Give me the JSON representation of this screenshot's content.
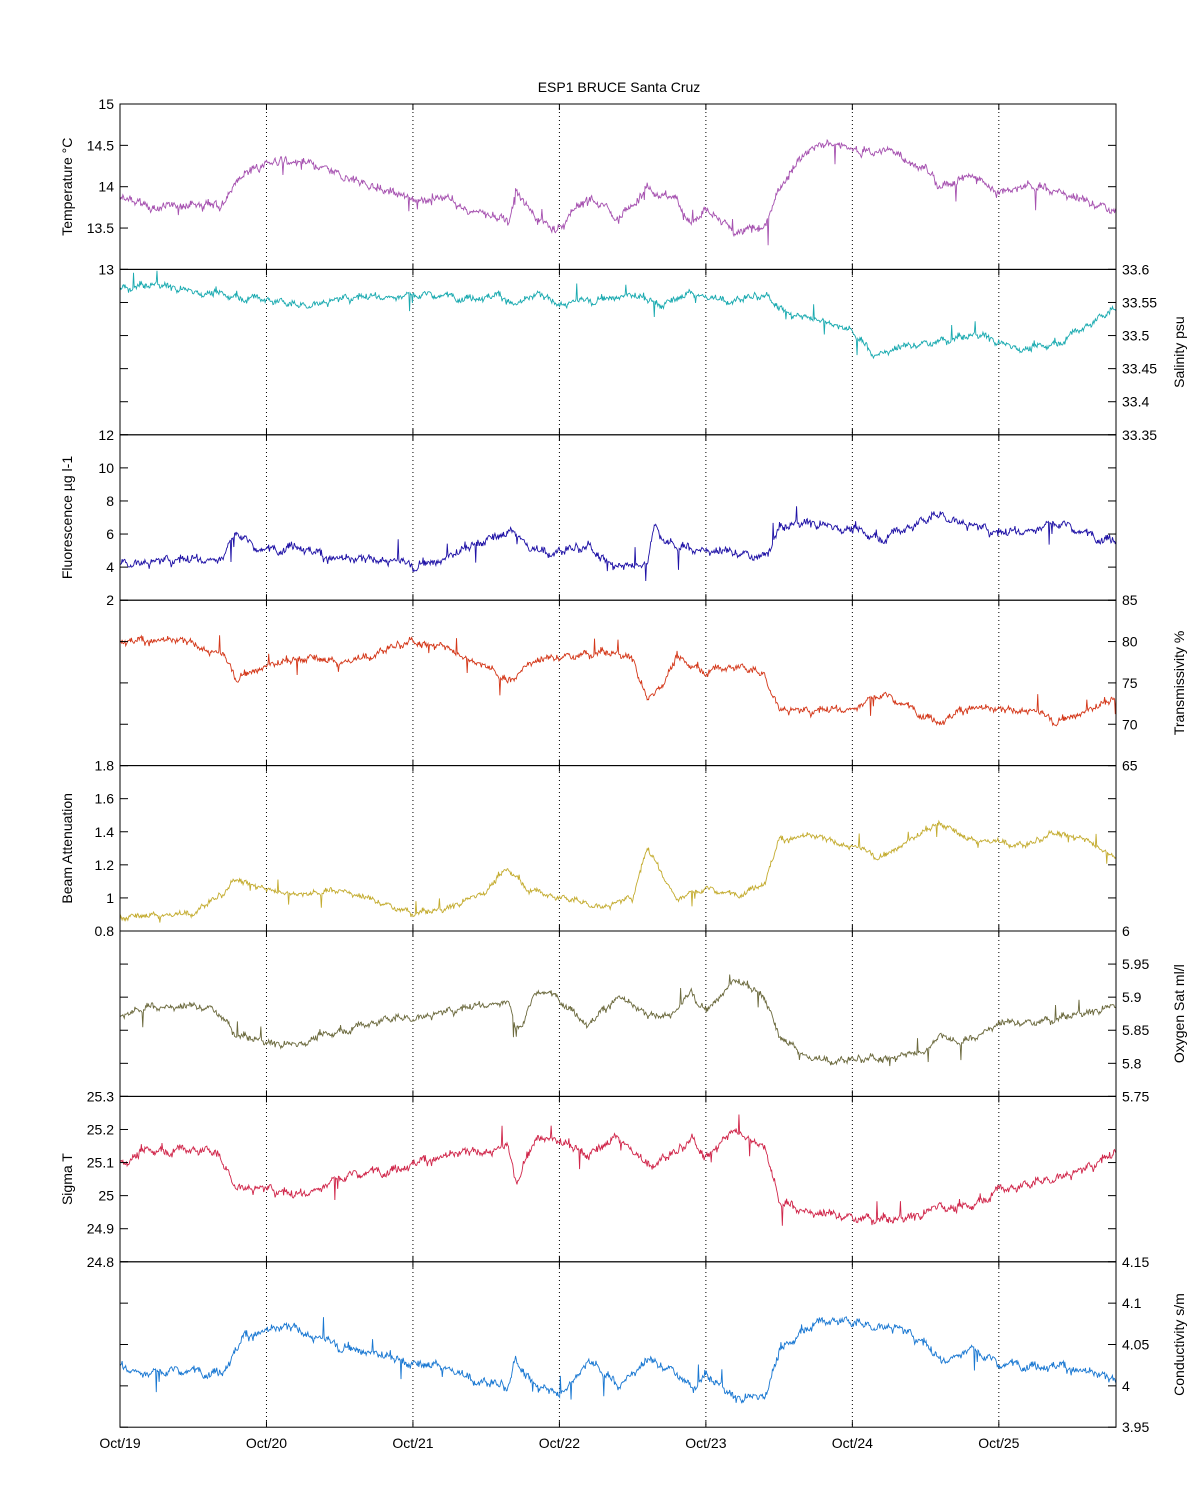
{
  "title": "ESP1 BRUCE Santa Cruz",
  "x_ticks": [
    "Oct/19",
    "Oct/20",
    "Oct/21",
    "Oct/22",
    "Oct/23",
    "Oct/24",
    "Oct/25"
  ],
  "chart_data": {
    "type": "line",
    "title": "ESP1 BRUCE Santa Cruz",
    "x_range_days": [
      19,
      25.8
    ],
    "x_ticks": [
      "Oct/19",
      "Oct/20",
      "Oct/21",
      "Oct/22",
      "Oct/23",
      "Oct/24",
      "Oct/25"
    ],
    "grid": "vertical dotted at each day",
    "panels": [
      {
        "name": "Temperature °C",
        "ylabel": "Temperature °C",
        "axis_side": "left",
        "ylim": [
          13,
          15
        ],
        "yticks": [
          "13",
          "13.5",
          "14",
          "14.5",
          "15"
        ],
        "color": "#a652b0",
        "x": [
          19.0,
          19.2,
          19.5,
          19.7,
          19.85,
          20.0,
          20.2,
          20.5,
          20.8,
          21.0,
          21.2,
          21.5,
          21.65,
          21.7,
          21.85,
          22.0,
          22.2,
          22.4,
          22.6,
          22.8,
          22.9,
          23.0,
          23.2,
          23.4,
          23.5,
          23.7,
          23.9,
          24.0,
          24.3,
          24.5,
          24.6,
          24.8,
          25.0,
          25.2,
          25.4,
          25.6,
          25.8
        ],
        "y": [
          13.85,
          13.75,
          13.78,
          13.8,
          14.2,
          14.25,
          14.3,
          14.15,
          13.95,
          13.85,
          13.85,
          13.65,
          13.55,
          13.95,
          13.6,
          13.5,
          13.9,
          13.6,
          14.0,
          13.85,
          13.55,
          13.7,
          13.45,
          13.5,
          14.0,
          14.45,
          14.5,
          14.45,
          14.42,
          14.2,
          14.0,
          14.15,
          13.95,
          14.0,
          13.95,
          13.8,
          13.7
        ],
        "noise": 0.06
      },
      {
        "name": "Salinity psu",
        "ylabel": "Salinity psu",
        "axis_side": "right",
        "ylim": [
          33.35,
          33.6
        ],
        "yticks": [
          "33.35",
          "33.4",
          "33.45",
          "33.5",
          "33.55",
          "33.6"
        ],
        "color": "#1aaab0",
        "x": [
          19.0,
          19.3,
          19.6,
          19.8,
          20.0,
          20.2,
          20.5,
          20.8,
          21.0,
          21.3,
          21.6,
          21.7,
          21.85,
          22.0,
          22.2,
          22.5,
          22.7,
          22.9,
          23.0,
          23.2,
          23.4,
          23.6,
          23.8,
          24.0,
          24.15,
          24.3,
          24.6,
          24.9,
          25.0,
          25.2,
          25.4,
          25.6,
          25.8
        ],
        "y": [
          33.57,
          33.575,
          33.565,
          33.56,
          33.555,
          33.545,
          33.555,
          33.56,
          33.56,
          33.56,
          33.56,
          33.545,
          33.56,
          33.55,
          33.555,
          33.56,
          33.545,
          33.565,
          33.56,
          33.555,
          33.56,
          33.53,
          33.525,
          33.505,
          33.47,
          33.48,
          33.49,
          33.5,
          33.49,
          33.48,
          33.49,
          33.515,
          33.54
        ],
        "noise": 0.006
      },
      {
        "name": "Fluorescence µg l-1",
        "ylabel": "Fluorescence µg l-1",
        "axis_side": "left",
        "ylim": [
          2,
          12
        ],
        "yticks": [
          "2",
          "4",
          "6",
          "8",
          "10",
          "12"
        ],
        "color": "#1f12a6",
        "x": [
          19.0,
          19.4,
          19.7,
          19.8,
          19.9,
          20.0,
          20.2,
          20.4,
          20.6,
          20.8,
          21.0,
          21.2,
          21.5,
          21.7,
          21.8,
          22.0,
          22.2,
          22.4,
          22.6,
          22.65,
          22.7,
          22.8,
          23.0,
          23.2,
          23.4,
          23.5,
          23.7,
          23.9,
          24.0,
          24.2,
          24.5,
          24.6,
          24.8,
          25.0,
          25.2,
          25.4,
          25.6,
          25.8
        ],
        "y": [
          4.3,
          4.4,
          4.6,
          6.1,
          5.2,
          5.0,
          5.5,
          4.6,
          4.3,
          4.6,
          4.2,
          4.4,
          5.6,
          6.2,
          5.2,
          5.0,
          5.2,
          4.0,
          4.3,
          6.8,
          5.6,
          5.2,
          5.0,
          4.8,
          4.5,
          6.2,
          6.7,
          6.5,
          6.3,
          5.8,
          6.8,
          7.2,
          6.6,
          6.0,
          6.3,
          6.6,
          6.0,
          5.8
        ],
        "noise": 0.3
      },
      {
        "name": "Transmissivity %",
        "ylabel": "Transmissivity %",
        "axis_side": "right",
        "ylim": [
          65,
          85
        ],
        "yticks": [
          "65",
          "70",
          "75",
          "80",
          "85"
        ],
        "color": "#d4381a",
        "x": [
          19.0,
          19.3,
          19.5,
          19.7,
          19.8,
          20.0,
          20.3,
          20.5,
          21.0,
          21.2,
          21.5,
          21.65,
          21.8,
          22.0,
          22.3,
          22.5,
          22.6,
          22.7,
          22.8,
          23.0,
          23.2,
          23.4,
          23.5,
          23.7,
          24.0,
          24.2,
          24.4,
          24.6,
          24.8,
          25.0,
          25.2,
          25.4,
          25.6,
          25.8
        ],
        "y": [
          80.2,
          80.0,
          79.8,
          78.5,
          75.8,
          77.0,
          78.0,
          77.5,
          80.0,
          79.5,
          77.0,
          75.0,
          77.5,
          78.0,
          78.5,
          78.0,
          73.0,
          75.0,
          78.0,
          76.5,
          77.0,
          76.0,
          72.0,
          71.5,
          72.0,
          73.5,
          72.0,
          70.5,
          72.0,
          71.5,
          72.0,
          70.5,
          71.5,
          73.0
        ],
        "noise": 0.5
      },
      {
        "name": "Beam Attenuation",
        "ylabel": "Beam Attenuation",
        "axis_side": "left",
        "ylim": [
          0.8,
          1.8
        ],
        "yticks": [
          "0.8",
          "1",
          "1.2",
          "1.4",
          "1.6",
          "1.8"
        ],
        "color": "#c4ac30",
        "x": [
          19.0,
          19.3,
          19.5,
          19.7,
          19.8,
          20.0,
          20.3,
          20.5,
          21.0,
          21.2,
          21.5,
          21.65,
          21.8,
          22.0,
          22.3,
          22.5,
          22.6,
          22.7,
          22.8,
          23.0,
          23.2,
          23.4,
          23.5,
          23.7,
          24.0,
          24.2,
          24.4,
          24.6,
          24.8,
          25.0,
          25.2,
          25.4,
          25.6,
          25.8
        ],
        "y": [
          0.88,
          0.9,
          0.92,
          1.02,
          1.12,
          1.05,
          1.02,
          1.05,
          0.9,
          0.92,
          1.05,
          1.18,
          1.05,
          1.0,
          0.95,
          1.0,
          1.3,
          1.15,
          1.0,
          1.05,
          1.02,
          1.1,
          1.35,
          1.37,
          1.32,
          1.25,
          1.35,
          1.45,
          1.35,
          1.35,
          1.32,
          1.4,
          1.35,
          1.25
        ],
        "noise": 0.02
      },
      {
        "name": "Oxygen Sat ml/l",
        "ylabel": "Oxygen Sat ml/l",
        "axis_side": "right",
        "ylim": [
          5.75,
          6.0
        ],
        "yticks": [
          "5.75",
          "5.8",
          "5.85",
          "5.9",
          "5.95",
          "6"
        ],
        "color": "#6c6a3e",
        "x": [
          19.0,
          19.2,
          19.5,
          19.65,
          19.8,
          20.0,
          20.2,
          20.5,
          20.8,
          21.0,
          21.3,
          21.5,
          21.65,
          21.7,
          21.75,
          21.85,
          22.0,
          22.2,
          22.4,
          22.6,
          22.8,
          22.9,
          23.0,
          23.2,
          23.4,
          23.5,
          23.7,
          24.0,
          24.3,
          24.5,
          24.6,
          24.7,
          24.8,
          25.0,
          25.2,
          25.4,
          25.6,
          25.8
        ],
        "y": [
          5.87,
          5.885,
          5.885,
          5.88,
          5.84,
          5.83,
          5.83,
          5.85,
          5.865,
          5.87,
          5.88,
          5.89,
          5.895,
          5.85,
          5.86,
          5.91,
          5.9,
          5.86,
          5.9,
          5.87,
          5.88,
          5.91,
          5.88,
          5.925,
          5.9,
          5.84,
          5.81,
          5.805,
          5.81,
          5.82,
          5.845,
          5.83,
          5.835,
          5.86,
          5.86,
          5.865,
          5.875,
          5.89
        ],
        "noise": 0.006
      },
      {
        "name": "Sigma T",
        "ylabel": "Sigma T",
        "axis_side": "left",
        "ylim": [
          24.8,
          25.3
        ],
        "yticks": [
          "24.8",
          "24.9",
          "25",
          "25.1",
          "25.2",
          "25.3"
        ],
        "color": "#d0264a",
        "x": [
          19.0,
          19.2,
          19.5,
          19.65,
          19.8,
          20.0,
          20.2,
          20.5,
          20.8,
          21.0,
          21.3,
          21.5,
          21.65,
          21.7,
          21.85,
          22.0,
          22.2,
          22.4,
          22.6,
          22.8,
          22.9,
          23.0,
          23.2,
          23.4,
          23.5,
          23.7,
          24.0,
          24.3,
          24.5,
          24.6,
          24.7,
          24.8,
          25.0,
          25.2,
          25.4,
          25.6,
          25.8
        ],
        "y": [
          25.1,
          25.14,
          25.14,
          25.13,
          25.03,
          25.02,
          25.0,
          25.05,
          25.08,
          25.1,
          25.12,
          25.14,
          25.15,
          25.05,
          25.18,
          25.16,
          25.12,
          25.18,
          25.1,
          25.13,
          25.17,
          25.12,
          25.2,
          25.15,
          24.98,
          24.95,
          24.93,
          24.92,
          24.95,
          24.98,
          24.96,
          24.97,
          25.02,
          25.03,
          25.06,
          25.08,
          25.13
        ],
        "noise": 0.015
      },
      {
        "name": "Conductivity s/m",
        "ylabel": "Conductivity s/m",
        "axis_side": "right",
        "ylim": [
          3.95,
          4.15
        ],
        "yticks": [
          "3.95",
          "4",
          "4.05",
          "4.1",
          "4.15"
        ],
        "color": "#1a78d2",
        "x": [
          19.0,
          19.2,
          19.5,
          19.7,
          19.85,
          20.0,
          20.2,
          20.5,
          20.8,
          21.0,
          21.2,
          21.5,
          21.65,
          21.7,
          21.85,
          22.0,
          22.2,
          22.4,
          22.6,
          22.8,
          22.9,
          23.0,
          23.2,
          23.4,
          23.5,
          23.7,
          23.9,
          24.0,
          24.3,
          24.5,
          24.6,
          24.8,
          25.0,
          25.2,
          25.4,
          25.6,
          25.8
        ],
        "y": [
          4.025,
          4.015,
          4.018,
          4.02,
          4.06,
          4.065,
          4.07,
          4.05,
          4.035,
          4.025,
          4.025,
          4.005,
          3.998,
          4.03,
          4.0,
          3.99,
          4.03,
          4.0,
          4.03,
          4.015,
          3.995,
          4.01,
          3.985,
          3.99,
          4.04,
          4.075,
          4.08,
          4.075,
          4.072,
          4.05,
          4.03,
          4.045,
          4.025,
          4.028,
          4.025,
          4.015,
          4.005
        ],
        "noise": 0.006
      }
    ]
  }
}
